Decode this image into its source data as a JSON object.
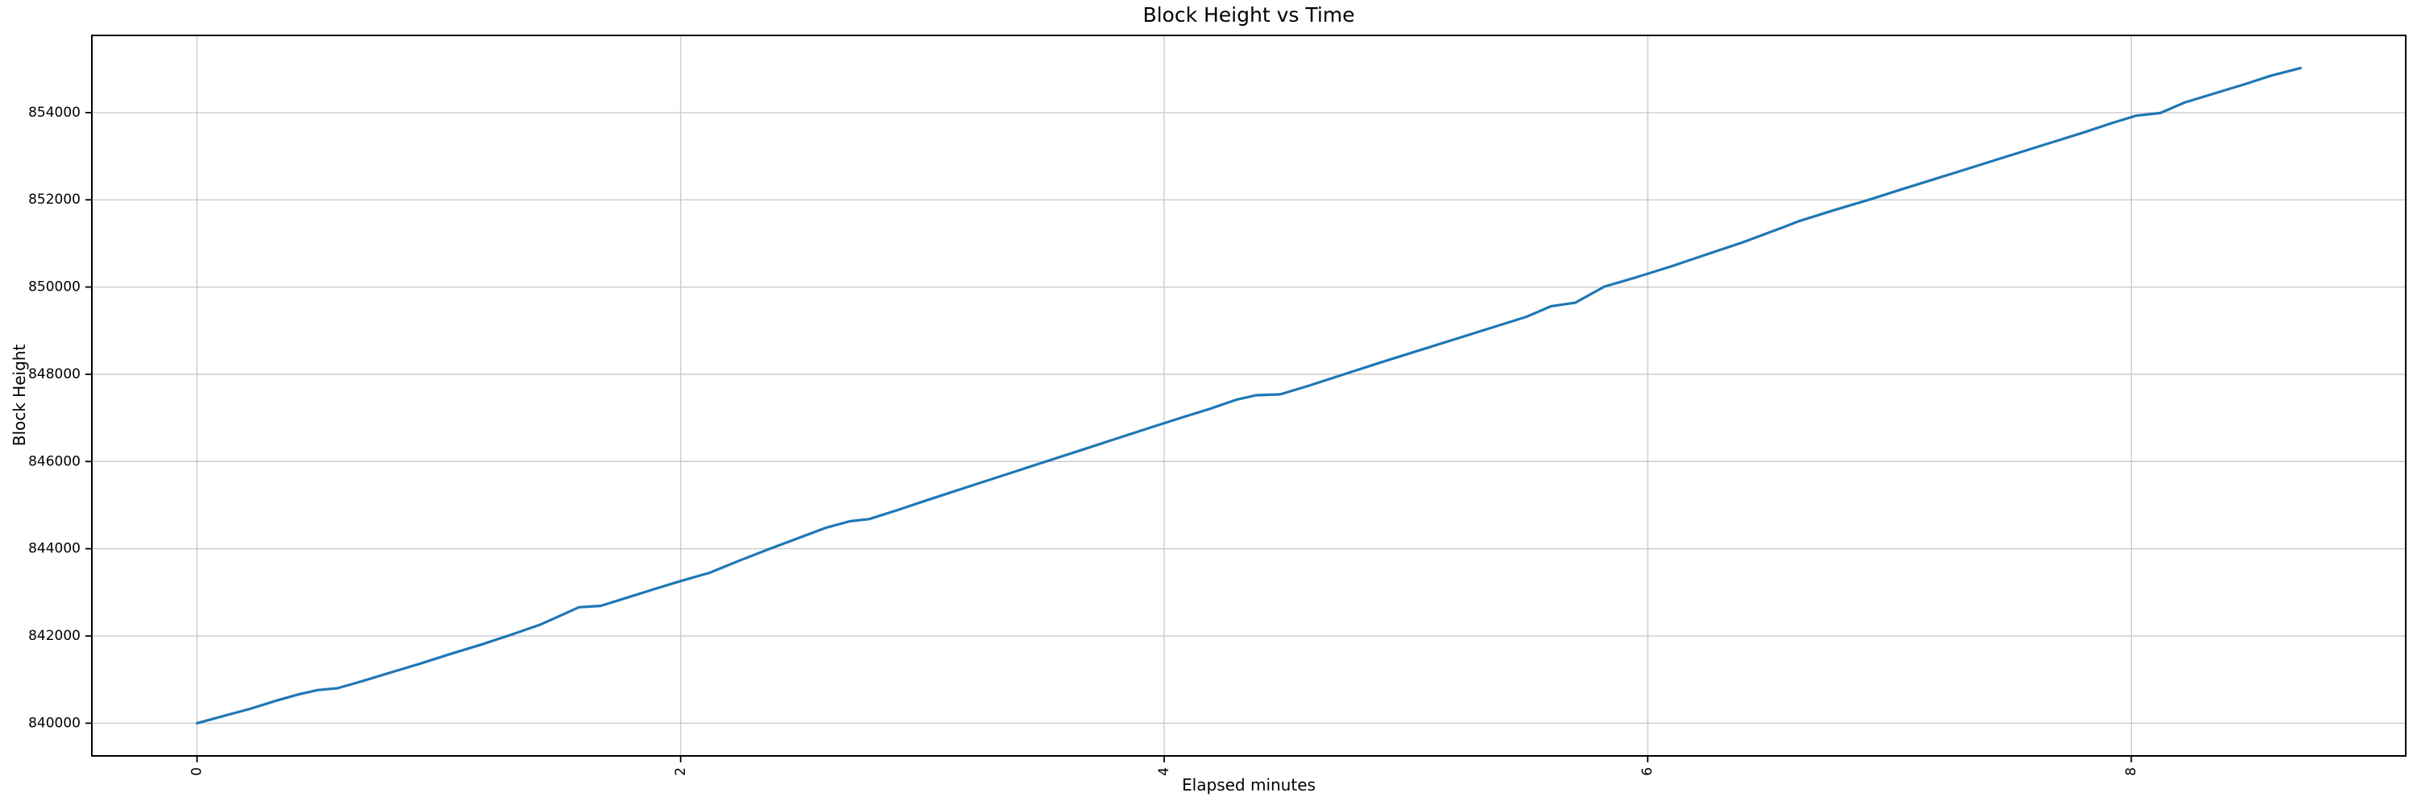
{
  "figure": {
    "background": "#ffffff"
  },
  "chart_data": {
    "type": "line",
    "title": "Block Height vs Time",
    "xlabel": "Elapsed minutes",
    "ylabel": "Block Height",
    "legend": "none",
    "grid": true,
    "grid_color": "#c8c8c8",
    "spine_color": "#000000",
    "line_color": "#1f77b4",
    "xlim": [
      -0.435,
      9.135
    ],
    "ylim": [
      839250,
      855770
    ],
    "x_ticks": [
      0,
      2,
      4,
      6,
      8
    ],
    "x_tick_labels": [
      "0",
      "2",
      "4",
      "6",
      "8"
    ],
    "x_tick_rotation": 90,
    "y_ticks": [
      840000,
      842000,
      844000,
      846000,
      848000,
      850000,
      852000,
      854000
    ],
    "y_tick_labels": [
      "840000",
      "842000",
      "844000",
      "846000",
      "848000",
      "850000",
      "852000",
      "854000"
    ],
    "series": [
      {
        "name": "block-height",
        "x": [
          0.0,
          0.1,
          0.22,
          0.33,
          0.42,
          0.5,
          0.58,
          0.68,
          0.8,
          0.92,
          1.05,
          1.18,
          1.3,
          1.42,
          1.52,
          1.58,
          1.67,
          1.78,
          1.9,
          2.0,
          2.12,
          2.24,
          2.36,
          2.48,
          2.6,
          2.7,
          2.78,
          2.9,
          3.05,
          3.2,
          3.35,
          3.5,
          3.65,
          3.8,
          3.95,
          4.08,
          4.19,
          4.3,
          4.38,
          4.48,
          4.6,
          4.75,
          4.9,
          5.05,
          5.2,
          5.35,
          5.5,
          5.6,
          5.7,
          5.82,
          5.95,
          6.1,
          6.25,
          6.4,
          6.55,
          6.63,
          6.78,
          6.92,
          7.05,
          7.2,
          7.35,
          7.5,
          7.65,
          7.8,
          7.92,
          8.02,
          8.12,
          8.22,
          8.35,
          8.48,
          8.58,
          8.7
        ],
        "y": [
          840000,
          840150,
          840330,
          840520,
          840660,
          840760,
          840800,
          840960,
          841160,
          841360,
          841590,
          841810,
          842030,
          842260,
          842510,
          842660,
          842690,
          842880,
          843090,
          843260,
          843450,
          843720,
          843980,
          844230,
          844480,
          844630,
          844680,
          844890,
          845170,
          845440,
          845710,
          845980,
          846250,
          846520,
          846790,
          847020,
          847210,
          847420,
          847520,
          847540,
          847740,
          848010,
          848280,
          848540,
          848800,
          849060,
          849320,
          849560,
          849640,
          850010,
          850220,
          850480,
          850760,
          851040,
          851350,
          851520,
          851780,
          852010,
          852240,
          852500,
          852760,
          853020,
          853280,
          853540,
          853760,
          853930,
          853990,
          854230,
          854450,
          854670,
          854850,
          855020
        ]
      }
    ]
  }
}
